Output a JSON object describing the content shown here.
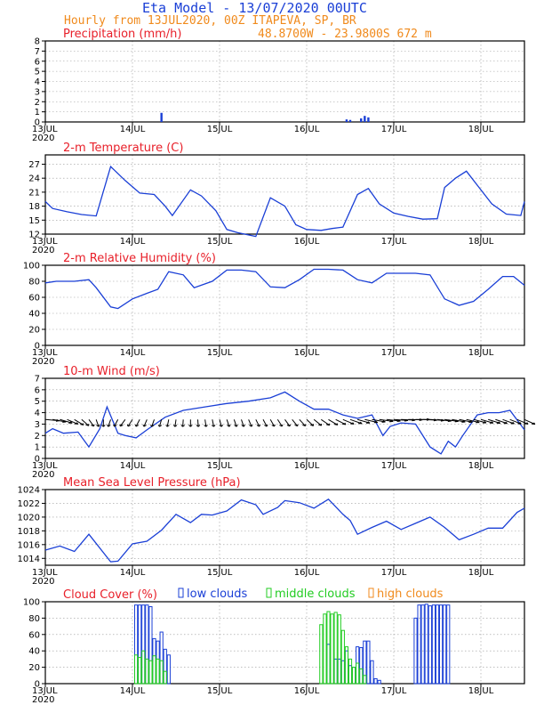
{
  "header": {
    "title": "Eta Model - 13/07/2020 00UTC",
    "subtitle": "Hourly from 13JUL2020, 00Z  ITAPEVA, SP, BR",
    "coords": "48.8700W - 23.9800S     672  m"
  },
  "colors": {
    "series": "#1a3fd6",
    "title": "#e8202a",
    "low": "#1a3fd6",
    "middle": "#22cc22",
    "high": "#f08a1c",
    "grid": "#9a9a9a",
    "wind_barb": "#000000"
  },
  "x_axis": {
    "range": [
      0,
      132
    ],
    "ticks": [
      {
        "x": 0,
        "label": "13JUL",
        "sub": "2020"
      },
      {
        "x": 24,
        "label": "14JUL"
      },
      {
        "x": 48,
        "label": "15JUL"
      },
      {
        "x": 72,
        "label": "16JUL"
      },
      {
        "x": 96,
        "label": "17JUL"
      },
      {
        "x": 120,
        "label": "18JUL"
      }
    ]
  },
  "chart_data": [
    {
      "id": "precip",
      "type": "bar",
      "title": "Precipitation (mm/h)",
      "ylim": [
        0,
        8
      ],
      "yticks": [
        0,
        1,
        2,
        3,
        4,
        5,
        6,
        7,
        8
      ],
      "x": [
        32,
        83,
        84,
        87,
        88,
        89
      ],
      "values": [
        0.9,
        0.25,
        0.2,
        0.35,
        0.6,
        0.45
      ]
    },
    {
      "id": "temp",
      "type": "line",
      "title": "2-m Temperature (C)",
      "ylim": [
        12,
        29
      ],
      "yticks": [
        12,
        15,
        18,
        21,
        24,
        27
      ],
      "x": [
        0,
        2,
        6,
        10,
        14,
        18,
        22,
        26,
        30,
        33,
        35,
        40,
        43,
        47,
        50,
        53,
        58,
        62,
        66,
        69,
        72,
        76,
        79,
        82,
        86,
        89,
        92,
        96,
        100,
        104,
        108,
        110,
        113,
        116,
        119,
        123,
        127,
        131,
        132
      ],
      "values": [
        19,
        17.5,
        16.8,
        16.2,
        15.9,
        26.5,
        23.5,
        20.8,
        20.5,
        18,
        16,
        21.5,
        20.2,
        17,
        13,
        12.3,
        11.5,
        19.8,
        18,
        14,
        13,
        12.8,
        13.2,
        13.5,
        20.5,
        21.8,
        18.5,
        16.5,
        15.8,
        15.2,
        15.3,
        22,
        24,
        25.5,
        22.5,
        18.5,
        16.3,
        16,
        19
      ]
    },
    {
      "id": "rh",
      "type": "line",
      "title": "2-m Relative Humidity (%)",
      "ylim": [
        0,
        100
      ],
      "yticks": [
        0,
        20,
        40,
        60,
        80,
        100
      ],
      "x": [
        0,
        3,
        8,
        12,
        14,
        18,
        20,
        24,
        28,
        31,
        34,
        38,
        41,
        46,
        50,
        54,
        58,
        62,
        66,
        70,
        74,
        78,
        82,
        86,
        90,
        94,
        98,
        102,
        106,
        110,
        114,
        118,
        122,
        126,
        129,
        132
      ],
      "values": [
        78,
        80,
        80,
        82,
        72,
        48,
        46,
        58,
        65,
        70,
        92,
        88,
        72,
        80,
        94,
        94,
        92,
        73,
        72,
        82,
        95,
        95,
        94,
        82,
        78,
        90,
        90,
        90,
        88,
        58,
        50,
        55,
        70,
        86,
        86,
        75
      ]
    },
    {
      "id": "wind",
      "type": "line",
      "title": "10-m Wind (m/s)",
      "ylim": [
        0,
        7
      ],
      "yticks": [
        0,
        1,
        2,
        3,
        4,
        5,
        6,
        7
      ],
      "x": [
        0,
        2,
        5,
        9,
        12,
        15,
        17,
        20,
        22,
        25,
        28,
        33,
        38,
        44,
        50,
        56,
        62,
        66,
        70,
        74,
        78,
        82,
        86,
        90,
        93,
        95,
        98,
        102,
        106,
        109,
        111,
        113,
        115,
        119,
        122,
        125,
        128,
        132
      ],
      "values": [
        2.2,
        2.6,
        2.2,
        2.3,
        1.0,
        2.6,
        4.5,
        2.2,
        2.0,
        1.8,
        2.5,
        3.6,
        4.2,
        4.5,
        4.8,
        5.0,
        5.3,
        5.8,
        5.0,
        4.3,
        4.3,
        3.8,
        3.5,
        3.8,
        2.0,
        2.8,
        3.1,
        3.0,
        1.0,
        0.4,
        1.5,
        1.0,
        2.0,
        3.8,
        4.0,
        4.0,
        4.2,
        2.5
      ]
    },
    {
      "id": "mslp",
      "type": "line",
      "title": "Mean Sea Level Pressure (hPa)",
      "ylim": [
        1013,
        1024
      ],
      "yticks": [
        1014,
        1016,
        1018,
        1020,
        1022,
        1024
      ],
      "x": [
        0,
        4,
        8,
        12,
        18,
        20,
        24,
        28,
        32,
        36,
        40,
        43,
        46,
        50,
        54,
        58,
        60,
        64,
        66,
        70,
        74,
        78,
        82,
        84,
        86,
        90,
        94,
        98,
        102,
        106,
        110,
        114,
        118,
        122,
        126,
        130,
        132
      ],
      "values": [
        1015.2,
        1015.8,
        1015,
        1017.5,
        1013.5,
        1013.6,
        1016.1,
        1016.5,
        1018.1,
        1020.4,
        1019.2,
        1020.4,
        1020.3,
        1020.9,
        1022.5,
        1021.8,
        1020.4,
        1021.4,
        1022.4,
        1022.1,
        1021.3,
        1022.6,
        1020.4,
        1019.5,
        1017.5,
        1018.5,
        1019.4,
        1018.2,
        1019.1,
        1020,
        1018.5,
        1016.7,
        1017.5,
        1018.4,
        1018.4,
        1020.7,
        1021.3
      ]
    },
    {
      "id": "cloud",
      "type": "bar",
      "title": "Cloud Cover (%)",
      "legend": [
        "low clouds",
        "middle clouds",
        "high clouds"
      ],
      "ylim": [
        0,
        100
      ],
      "yticks": [
        0,
        20,
        40,
        60,
        80,
        100
      ],
      "series": [
        {
          "name": "low clouds",
          "x": [
            25,
            26,
            27,
            28,
            29,
            30,
            31,
            32,
            33,
            34,
            78,
            80,
            81,
            82,
            83,
            84,
            85,
            86,
            87,
            88,
            89,
            90,
            91,
            92,
            102,
            103,
            104,
            105,
            106,
            107,
            108,
            109,
            110,
            111
          ],
          "values": [
            96,
            96,
            96,
            96,
            94,
            55,
            52,
            63,
            42,
            35,
            48,
            30,
            30,
            28,
            40,
            22,
            20,
            45,
            44,
            52,
            52,
            28,
            6,
            4,
            80,
            96,
            96,
            97,
            95,
            96,
            96,
            96,
            96,
            96
          ]
        },
        {
          "name": "middle clouds",
          "x": [
            25,
            26,
            27,
            28,
            29,
            30,
            31,
            32,
            33,
            76,
            77,
            78,
            79,
            80,
            81,
            82,
            83,
            84,
            85,
            86,
            87,
            88
          ],
          "values": [
            35,
            32,
            40,
            30,
            28,
            34,
            30,
            28,
            15,
            72,
            85,
            88,
            85,
            87,
            84,
            65,
            45,
            30,
            20,
            25,
            18,
            10
          ]
        },
        {
          "name": "high clouds",
          "x": [],
          "values": []
        }
      ]
    }
  ],
  "wind_vectors": {
    "x": [
      0,
      2,
      4,
      6,
      8,
      10,
      12,
      14,
      16,
      18,
      20,
      22,
      24,
      26,
      28,
      30,
      32,
      34,
      36,
      38,
      40,
      42,
      44,
      46,
      48,
      50,
      52,
      54,
      56,
      58,
      60,
      62,
      64,
      66,
      68,
      70,
      72,
      74,
      76,
      78,
      80,
      82,
      84,
      86,
      88,
      90,
      92,
      94,
      96,
      98,
      100,
      102,
      104,
      106,
      108,
      110,
      112,
      114,
      116,
      118,
      120,
      122,
      124,
      126,
      128,
      130,
      132
    ],
    "dir": [
      260,
      250,
      240,
      230,
      220,
      210,
      200,
      190,
      180,
      170,
      165,
      160,
      162,
      165,
      168,
      170,
      172,
      174,
      176,
      178,
      180,
      182,
      184,
      186,
      188,
      190,
      190,
      190,
      192,
      194,
      195,
      196,
      198,
      200,
      202,
      205,
      208,
      212,
      216,
      220,
      225,
      230,
      235,
      240,
      245,
      250,
      255,
      258,
      262,
      265,
      268,
      270,
      265,
      262,
      258,
      255,
      250,
      248,
      245,
      242,
      240,
      238,
      236,
      234,
      232,
      230,
      228
    ]
  }
}
